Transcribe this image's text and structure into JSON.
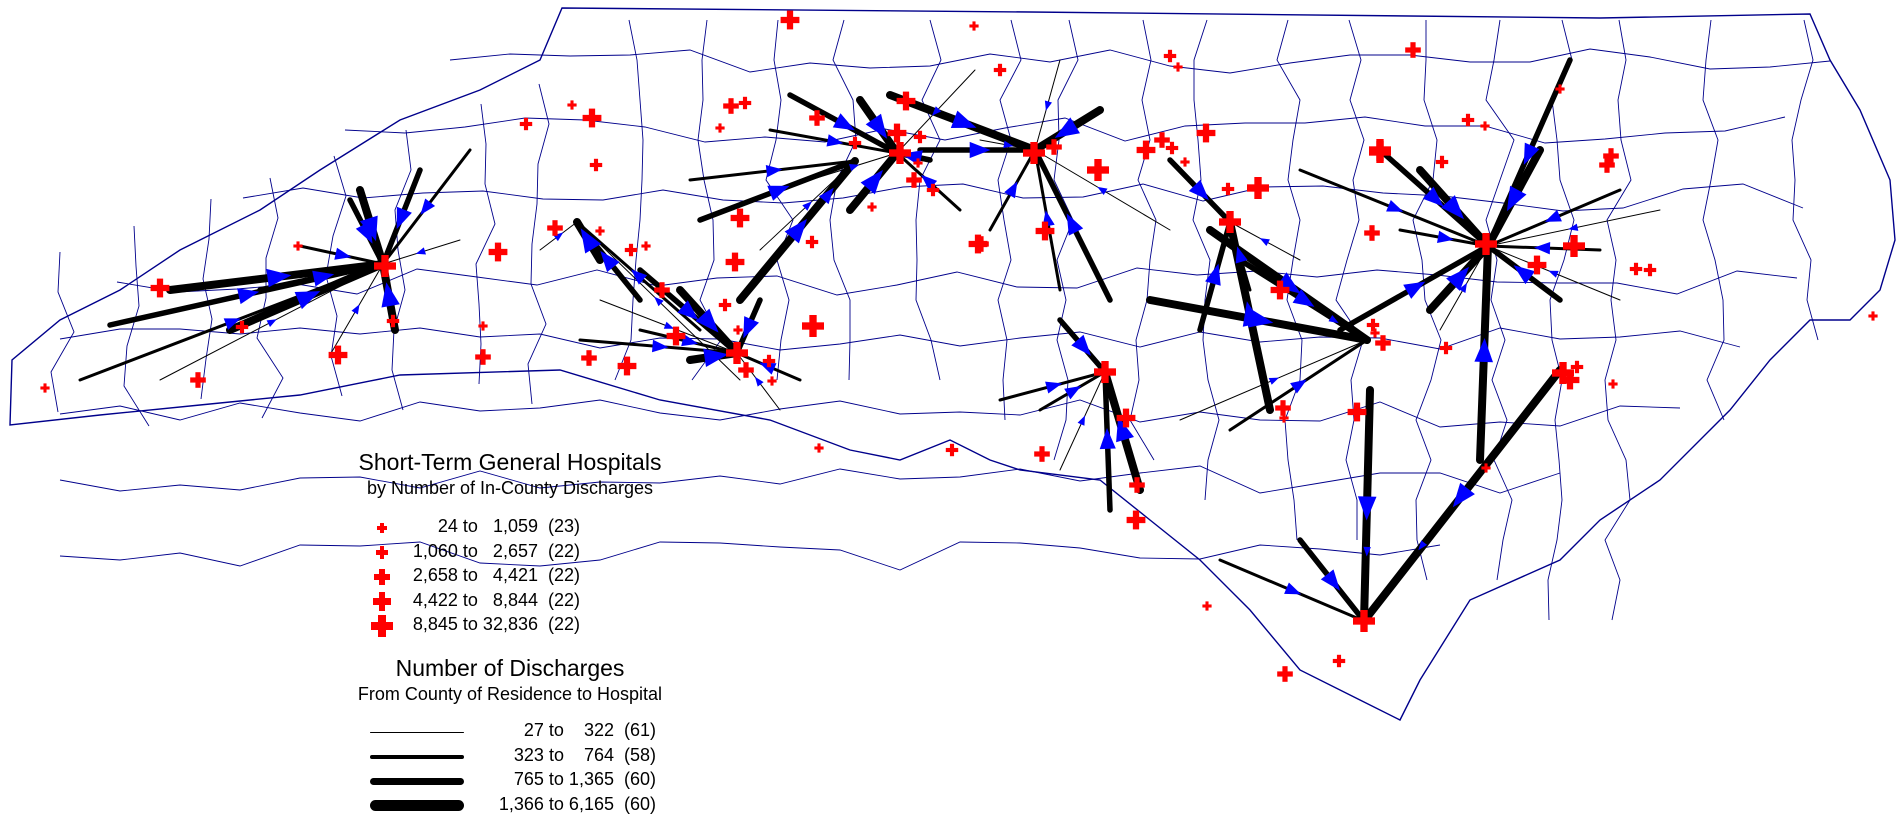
{
  "legend_hospitals": {
    "title": "Short-Term General Hospitals",
    "subtitle": "by Number of In-County Discharges",
    "items": [
      {
        "label": "24 to   1,059  (23)",
        "level": 1
      },
      {
        "label": "1,060 to   2,657  (22)",
        "level": 2
      },
      {
        "label": "2,658 to   4,421  (22)",
        "level": 3
      },
      {
        "label": "4,422 to   8,844  (22)",
        "level": 4
      },
      {
        "label": "8,845 to 32,836  (22)",
        "level": 5
      }
    ]
  },
  "legend_discharges": {
    "title": "Number of Discharges",
    "subtitle": "From County of Residence to Hospital",
    "items": [
      {
        "label": "27 to    322  (61)",
        "level": 1
      },
      {
        "label": "323 to    764  (58)",
        "level": 2
      },
      {
        "label": "765 to 1,365  (60)",
        "level": 3
      },
      {
        "label": "1,366 to 6,165  (60)",
        "level": 4
      }
    ]
  },
  "colors": {
    "hospital": "#ff0000",
    "flow_line": "#000000",
    "flow_arrow": "#0000ff",
    "county_border": "#00008b",
    "background": "#ffffff"
  }
}
